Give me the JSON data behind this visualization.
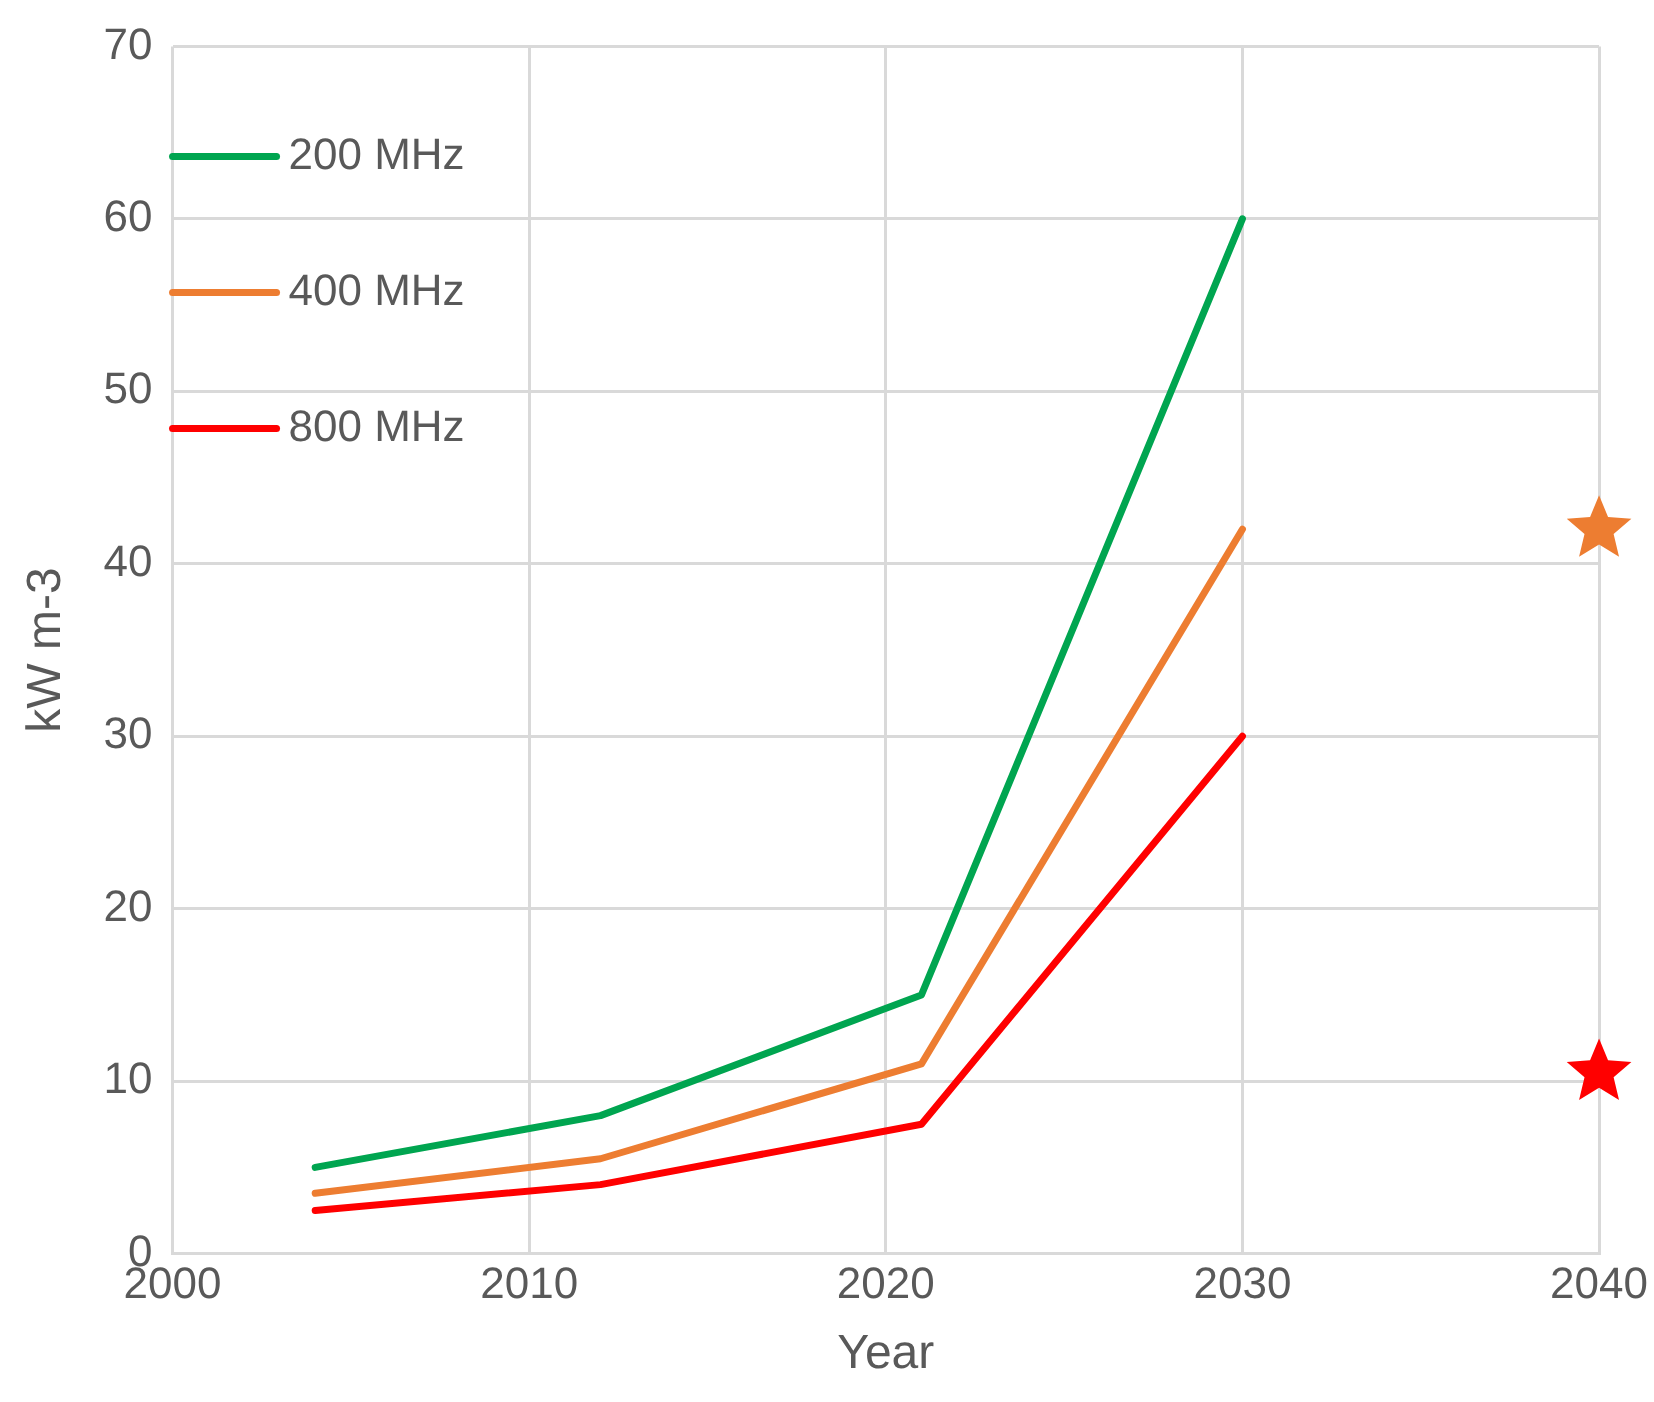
{
  "chart_data": {
    "type": "line",
    "xlabel": "Year",
    "ylabel": "kW m-3",
    "xlim": [
      2000,
      2040
    ],
    "xticks": [
      2000,
      2010,
      2020,
      2030,
      2040
    ],
    "ylim": [
      0,
      70
    ],
    "yticks": [
      0,
      10,
      20,
      30,
      40,
      50,
      60,
      70
    ],
    "grid": true,
    "legend": "top left",
    "marker": "none",
    "line_style": "solid",
    "series": [
      {
        "name": "200 MHz",
        "color": "#00a550",
        "x": [
          2004,
          2012,
          2021,
          2030
        ],
        "values": [
          5,
          8,
          15,
          60
        ]
      },
      {
        "name": "400 MHz",
        "color": "#ed7d31",
        "x": [
          2004,
          2012,
          2021,
          2030
        ],
        "values": [
          3.5,
          5.5,
          11,
          42
        ]
      },
      {
        "name": "800 MHz",
        "color": "#ff0000",
        "x": [
          2004,
          2012,
          2021,
          2030
        ],
        "values": [
          2.5,
          4,
          7.5,
          30
        ]
      },
      {
        "type": "scatter",
        "marker": "star",
        "color": "#ed7d31",
        "x": [
          2040
        ],
        "values": [
          42
        ]
      },
      {
        "type": "scatter",
        "marker": "star",
        "color": "#ff0000",
        "x": [
          2040
        ],
        "values": [
          10.5
        ]
      }
    ]
  }
}
